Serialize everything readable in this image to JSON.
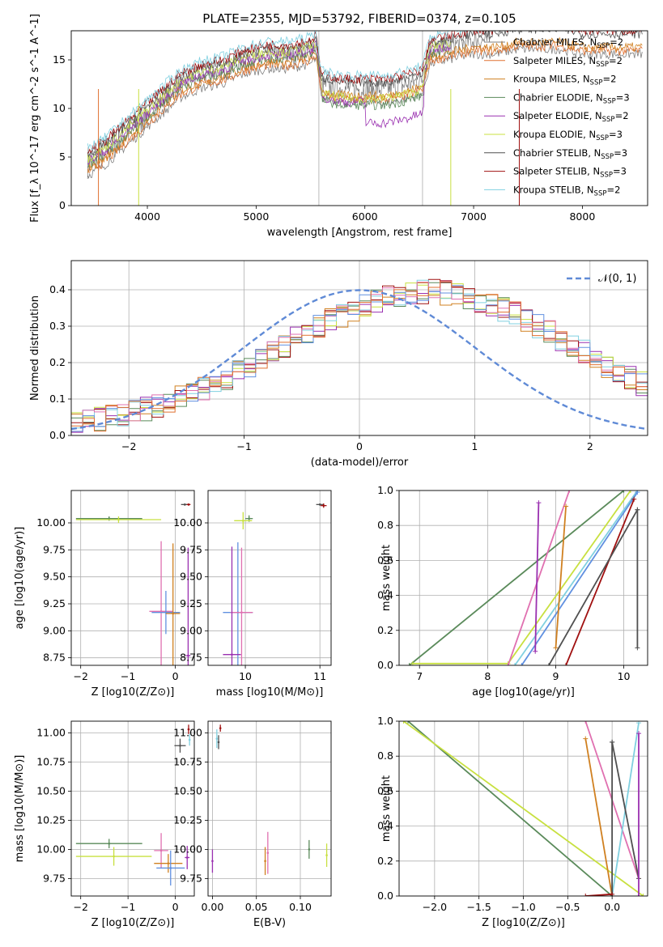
{
  "title": "PLATE=2355, MJD=53792, FIBERID=0374, z=0.105",
  "colors": {
    "Chabrier MILES": "#808080",
    "Salpeter MILES": "#e07030",
    "Kroupa MILES": "#d08020",
    "Chabrier ELODIE": "#5a8a5a",
    "Salpeter ELODIE": "#9a30b0",
    "Kroupa ELODIE": "#c8e040",
    "Chabrier STELIB": "#505050",
    "Salpeter STELIB": "#a01010",
    "Kroupa STELIB": "#80d0e0",
    "pink": "#e070b0",
    "blue": "#6090e0",
    "normal": "#5f8ad6",
    "data": "#777777"
  },
  "chart_data": [
    {
      "type": "line",
      "title": "PLATE=2355, MJD=53792, FIBERID=0374, z=0.105",
      "xlabel": "wavelength [Angstrom, rest frame]",
      "ylabel": "Flux [f_λ 10^-17 erg cm^-2 s^-1 A^-1]",
      "xlim": [
        3300,
        8600
      ],
      "ylim": [
        0,
        18
      ],
      "xticks": [
        "4000",
        "5000",
        "6000",
        "7000",
        "8000"
      ],
      "yticks": [
        "0",
        "5",
        "10",
        "15"
      ],
      "legend": [
        {
          "base": "Chabrier MILES, N",
          "sub": "SSP",
          "tail": "=2"
        },
        {
          "base": "Salpeter MILES, N",
          "sub": "SSP",
          "tail": "=2"
        },
        {
          "base": "Kroupa MILES, N",
          "sub": "SSP",
          "tail": "=2"
        },
        {
          "base": "Chabrier ELODIE, N",
          "sub": "SSP",
          "tail": "=3"
        },
        {
          "base": "Salpeter ELODIE, N",
          "sub": "SSP",
          "tail": "=2"
        },
        {
          "base": "Kroupa ELODIE, N",
          "sub": "SSP",
          "tail": "=3"
        },
        {
          "base": "Chabrier STELIB, N",
          "sub": "SSP",
          "tail": "=3"
        },
        {
          "base": "Salpeter STELIB, N",
          "sub": "SSP",
          "tail": "=3"
        },
        {
          "base": "Kroupa STELIB, N",
          "sub": "SSP",
          "tail": "=2"
        }
      ],
      "spectrum_anchors": {
        "x": [
          3450,
          3600,
          3800,
          3950,
          4100,
          4300,
          4500,
          4700,
          4900,
          5100,
          5300,
          5500,
          5550,
          5600,
          5800,
          6000,
          6200,
          6400,
          6530,
          6600,
          6800,
          7000,
          7200,
          7400,
          7600,
          7800,
          8000,
          8200,
          8400,
          8600
        ],
        "y": [
          4.5,
          5.5,
          7.5,
          9.0,
          10.5,
          12.5,
          13.5,
          14.0,
          15.0,
          15.5,
          15.5,
          16.0,
          16.5,
          12.5,
          12.0,
          12.0,
          12.0,
          12.5,
          13.0,
          16.0,
          16.5,
          17.0,
          17.0,
          17.5,
          17.5,
          17.5,
          17.0,
          17.0,
          17.0,
          17.0
        ]
      }
    },
    {
      "type": "line",
      "xlabel": "(data-model)/error",
      "ylabel": "Normed distribution",
      "xlim": [
        -2.5,
        2.5
      ],
      "ylim": [
        0,
        0.48
      ],
      "xticks": [
        "−2",
        "−1",
        "0",
        "1",
        "2"
      ],
      "yticks": [
        "0.0",
        "0.1",
        "0.2",
        "0.3",
        "0.4"
      ],
      "legend": "𝒩(0, 1)",
      "series": [
        {
          "name": "𝒩(0, 1)",
          "mu": 0,
          "sigma": 1
        }
      ],
      "histogram_peak_x": 0.6,
      "histogram_width": 1.25
    },
    {
      "type": "scatter",
      "xlabel": "Z [log10(Z/Z⊙)]",
      "ylabel": "age [log10(age/yr)]",
      "xlim": [
        -2.2,
        0.4
      ],
      "ylim": [
        8.68,
        10.3
      ],
      "xticks": [
        "−2",
        "−1",
        "0"
      ],
      "yticks": [
        "8.75",
        "9.00",
        "9.25",
        "9.50",
        "9.75",
        "10.00"
      ],
      "points": [
        {
          "x": -1.4,
          "y": 10.04,
          "xerr": 0.7,
          "yerr": 0.02,
          "c": "Chabrier ELODIE"
        },
        {
          "x": -1.2,
          "y": 10.03,
          "xerr": 0.9,
          "yerr": 0.03,
          "c": "Kroupa ELODIE"
        },
        {
          "x": -0.3,
          "y": 9.18,
          "xerr": 0.25,
          "yerr": 0.65,
          "c": "pink"
        },
        {
          "x": -0.2,
          "y": 9.17,
          "xerr": 0.3,
          "yerr": 0.2,
          "c": "blue"
        },
        {
          "x": -0.05,
          "y": 9.16,
          "xerr": 0.15,
          "yerr": 0.65,
          "c": "Kroupa MILES"
        },
        {
          "x": 0.27,
          "y": 8.77,
          "xerr": 0.05,
          "yerr": 1.0,
          "c": "Salpeter ELODIE"
        },
        {
          "x": 0.2,
          "y": 10.17,
          "xerr": 0.08,
          "yerr": 0.01,
          "c": "Chabrier STELIB"
        },
        {
          "x": 0.28,
          "y": 10.17,
          "xerr": 0.04,
          "yerr": 0.01,
          "c": "Salpeter STELIB"
        }
      ]
    },
    {
      "type": "scatter",
      "xlabel": "mass [log10(M/M⊙)]",
      "ylabel": "",
      "xlim": [
        9.5,
        11.15
      ],
      "ylim": [
        8.68,
        10.3
      ],
      "xticks": [
        "10",
        "11"
      ],
      "yticks": [
        "8.75",
        "9.00",
        "9.25",
        "9.50",
        "9.75",
        "10.00"
      ],
      "points": [
        {
          "x": 10.05,
          "y": 10.04,
          "xerr": 0.05,
          "yerr": 0.03,
          "c": "Chabrier ELODIE"
        },
        {
          "x": 9.97,
          "y": 10.02,
          "xerr": 0.12,
          "yerr": 0.08,
          "c": "Kroupa ELODIE"
        },
        {
          "x": 9.9,
          "y": 9.17,
          "xerr": 0.2,
          "yerr": 0.65,
          "c": "blue"
        },
        {
          "x": 9.95,
          "y": 9.17,
          "xerr": 0.15,
          "yerr": 0.6,
          "c": "pink"
        },
        {
          "x": 9.82,
          "y": 8.78,
          "xerr": 0.12,
          "yerr": 1.0,
          "c": "Salpeter ELODIE"
        },
        {
          "x": 11.0,
          "y": 10.17,
          "xerr": 0.05,
          "yerr": 0.01,
          "c": "Chabrier STELIB"
        },
        {
          "x": 11.05,
          "y": 10.16,
          "xerr": 0.04,
          "yerr": 0.02,
          "c": "Salpeter STELIB"
        }
      ]
    },
    {
      "type": "line",
      "xlabel": "age [log10(age/yr)]",
      "ylabel": "mass weight",
      "xlim": [
        6.7,
        10.35
      ],
      "ylim": [
        0,
        1
      ],
      "xticks": [
        "7",
        "8",
        "9",
        "10"
      ],
      "yticks": [
        "0.0",
        "0.2",
        "0.4",
        "0.6",
        "0.8",
        "1.0"
      ],
      "series": [
        {
          "c": "Chabrier ELODIE",
          "x": [
            6.85,
            10.0
          ],
          "y": [
            0.0,
            1.0
          ]
        },
        {
          "c": "Kroupa ELODIE",
          "x": [
            6.9,
            8.3,
            10.1
          ],
          "y": [
            0.01,
            0.01,
            1.0
          ]
        },
        {
          "c": "Kroupa STELIB",
          "x": [
            8.4,
            10.2
          ],
          "y": [
            0.0,
            1.0
          ]
        },
        {
          "c": "blue",
          "x": [
            8.5,
            10.2
          ],
          "y": [
            0.0,
            0.99
          ]
        },
        {
          "c": "Salpeter STELIB",
          "x": [
            9.15,
            10.15
          ],
          "y": [
            0.0,
            0.95
          ]
        },
        {
          "c": "Chabrier STELIB",
          "x": [
            8.9,
            10.2
          ],
          "y": [
            0.0,
            0.89
          ]
        },
        {
          "c": "pink",
          "x": [
            8.3,
            9.2
          ],
          "y": [
            0.0,
            1.0
          ]
        },
        {
          "c": "Salpeter ELODIE",
          "x": [
            8.7,
            8.75
          ],
          "y": [
            0.08,
            0.93
          ]
        },
        {
          "c": "Kroupa MILES",
          "x": [
            9.0,
            9.15
          ],
          "y": [
            0.1,
            0.91
          ]
        },
        {
          "c": "Chabrier STELIB",
          "x": [
            10.2,
            10.2
          ],
          "y": [
            0.1,
            0.89
          ]
        }
      ]
    },
    {
      "type": "scatter",
      "xlabel": "Z [log10(Z/Z⊙)]",
      "ylabel": "mass [log10(M/M⊙)]",
      "xlim": [
        -2.2,
        0.4
      ],
      "ylim": [
        9.6,
        11.1
      ],
      "xticks": [
        "−2",
        "−1",
        "0"
      ],
      "yticks": [
        "9.75",
        "10.00",
        "10.25",
        "10.50",
        "10.75",
        "11.00"
      ],
      "points": [
        {
          "x": -1.4,
          "y": 10.05,
          "xerr": 0.7,
          "yerr": 0.04,
          "c": "Chabrier ELODIE"
        },
        {
          "x": -1.3,
          "y": 9.94,
          "xerr": 0.8,
          "yerr": 0.08,
          "c": "Kroupa ELODIE"
        },
        {
          "x": -0.3,
          "y": 9.99,
          "xerr": 0.15,
          "yerr": 0.15,
          "c": "pink"
        },
        {
          "x": -0.15,
          "y": 9.88,
          "xerr": 0.3,
          "yerr": 0.08,
          "c": "Kroupa MILES"
        },
        {
          "x": -0.1,
          "y": 9.84,
          "xerr": 0.3,
          "yerr": 0.15,
          "c": "blue"
        },
        {
          "x": 0.25,
          "y": 9.93,
          "xerr": 0.05,
          "yerr": 0.1,
          "c": "Salpeter ELODIE"
        },
        {
          "x": 0.1,
          "y": 10.89,
          "xerr": 0.12,
          "yerr": 0.06,
          "c": "Chabrier STELIB"
        },
        {
          "x": 0.28,
          "y": 11.03,
          "xerr": 0.02,
          "yerr": 0.04,
          "c": "Salpeter STELIB"
        },
        {
          "x": 0.3,
          "y": 10.94,
          "xerr": 0.02,
          "yerr": 0.05,
          "c": "Kroupa STELIB"
        }
      ]
    },
    {
      "type": "scatter",
      "xlabel": "E(B-V)",
      "ylabel": "",
      "xlim": [
        -0.005,
        0.135
      ],
      "ylim": [
        9.6,
        11.1
      ],
      "xticks": [
        "0.00",
        "0.05",
        "0.10"
      ],
      "yticks": [
        "9.75",
        "10.00",
        "10.25",
        "10.50",
        "10.75",
        "11.00"
      ],
      "points": [
        {
          "x": 0.0,
          "y": 9.9,
          "xerr": 0.0,
          "yerr": 0.1,
          "c": "Salpeter ELODIE"
        },
        {
          "x": 0.005,
          "y": 10.95,
          "xerr": 0.0,
          "yerr": 0.08,
          "c": "Kroupa STELIB"
        },
        {
          "x": 0.007,
          "y": 10.92,
          "xerr": 0.0,
          "yerr": 0.06,
          "c": "Chabrier STELIB"
        },
        {
          "x": 0.009,
          "y": 11.04,
          "xerr": 0.0,
          "yerr": 0.03,
          "c": "Salpeter STELIB"
        },
        {
          "x": 0.06,
          "y": 9.9,
          "xerr": 0.0,
          "yerr": 0.12,
          "c": "Kroupa MILES"
        },
        {
          "x": 0.063,
          "y": 9.97,
          "xerr": 0.0,
          "yerr": 0.18,
          "c": "pink"
        },
        {
          "x": 0.11,
          "y": 10.0,
          "xerr": 0.0,
          "yerr": 0.08,
          "c": "Chabrier ELODIE"
        },
        {
          "x": 0.13,
          "y": 9.95,
          "xerr": 0.0,
          "yerr": 0.1,
          "c": "Kroupa ELODIE"
        }
      ]
    },
    {
      "type": "line",
      "xlabel": "Z [log10(Z/Z⊙)]",
      "ylabel": "mass weight",
      "xlim": [
        -2.4,
        0.4
      ],
      "ylim": [
        0,
        1
      ],
      "xticks": [
        "−2.0",
        "−1.5",
        "−1.0",
        "−0.5",
        "0.0"
      ],
      "yticks": [
        "0.0",
        "0.2",
        "0.4",
        "0.6",
        "0.8",
        "1.0"
      ],
      "series": [
        {
          "c": "Chabrier ELODIE",
          "x": [
            -2.3,
            0.0
          ],
          "y": [
            1.0,
            0.0
          ]
        },
        {
          "c": "Kroupa ELODIE",
          "x": [
            -2.35,
            0.35
          ],
          "y": [
            1.0,
            0.0
          ]
        },
        {
          "c": "Kroupa MILES",
          "x": [
            -0.3,
            0.0
          ],
          "y": [
            0.9,
            0.0
          ]
        },
        {
          "c": "pink",
          "x": [
            -0.3,
            0.3
          ],
          "y": [
            1.0,
            0.1
          ]
        },
        {
          "c": "Kroupa STELIB",
          "x": [
            0.0,
            0.3
          ],
          "y": [
            0.0,
            0.99
          ]
        },
        {
          "c": "Chabrier STELIB",
          "x": [
            0.0,
            0.3
          ],
          "y": [
            0.88,
            0.1
          ]
        },
        {
          "c": "Chabrier STELIB",
          "x": [
            0.0,
            0.0
          ],
          "y": [
            0.0,
            0.88
          ]
        },
        {
          "c": "Salpeter ELODIE",
          "x": [
            0.3,
            0.3
          ],
          "y": [
            0.0,
            0.93
          ]
        },
        {
          "c": "Salpeter STELIB",
          "x": [
            -0.3,
            0.0
          ],
          "y": [
            0.0,
            0.01
          ]
        }
      ]
    }
  ]
}
